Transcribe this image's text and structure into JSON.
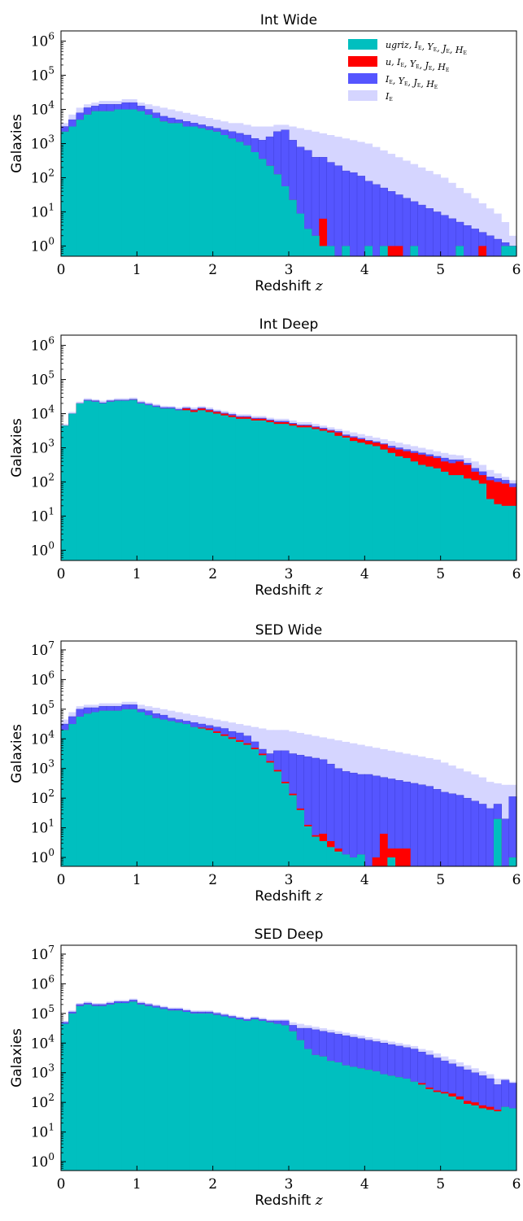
{
  "colors": {
    "ugriz": "#00bfbf",
    "u": "#ff0000",
    "IYJH": "#5555ff",
    "I": "#d5d5ff"
  },
  "chart_data": [
    {
      "type": "bar",
      "title": "Int Wide",
      "xlabel": "Redshift z",
      "ylabel": "Galaxies",
      "xlim": [
        0,
        6
      ],
      "ylog": [
        -0.3,
        6.3
      ],
      "yticks": [
        "10^0",
        "10^1",
        "10^2",
        "10^3",
        "10^4",
        "10^5",
        "10^6"
      ],
      "xticks": [
        "0",
        "1",
        "2",
        "3",
        "4",
        "5",
        "6"
      ],
      "legend": {
        "position": "top-right"
      },
      "series": [
        {
          "name": "ugriz, I_E, Y_E, J_E, H_E",
          "key": "ugriz"
        },
        {
          "name": "u, I_E, Y_E, J_E, H_E",
          "key": "u"
        },
        {
          "name": "I_E, Y_E, J_E, H_E",
          "key": "IYJH"
        },
        {
          "name": "I_E",
          "key": "I"
        }
      ],
      "x_bins": {
        "start": 0,
        "step": 0.1,
        "count": 60
      },
      "log10_counts": {
        "ugriz": [
          3.35,
          3.5,
          3.7,
          3.85,
          3.95,
          3.95,
          3.95,
          4.0,
          4.0,
          4.0,
          3.95,
          3.85,
          3.75,
          3.65,
          3.6,
          3.6,
          3.5,
          3.5,
          3.45,
          3.4,
          3.35,
          3.25,
          3.15,
          3.05,
          2.95,
          2.75,
          2.55,
          2.35,
          2.1,
          1.75,
          1.35,
          0.95,
          0.5,
          0.3,
          0.0,
          0.0,
          -1,
          0.0,
          -1,
          -1,
          0.0,
          -1,
          0.0,
          -1,
          -1,
          -1,
          0.0,
          -1,
          -1,
          -1,
          -1,
          -1,
          0.0,
          -1,
          -1,
          -1,
          -1,
          -1,
          0.0,
          0.0
        ],
        "u": [
          3.35,
          3.5,
          3.7,
          3.85,
          3.95,
          3.95,
          3.95,
          4.0,
          4.0,
          4.0,
          3.95,
          3.85,
          3.75,
          3.65,
          3.6,
          3.6,
          3.5,
          3.5,
          3.45,
          3.4,
          3.35,
          3.25,
          3.15,
          3.05,
          2.95,
          2.75,
          2.55,
          2.35,
          2.1,
          1.75,
          1.35,
          0.95,
          0.5,
          0.3,
          0.8,
          0.0,
          -1,
          0.0,
          -1,
          -1,
          0.0,
          -1,
          0.0,
          0.0,
          0.0,
          -1,
          0.0,
          -1,
          -1,
          -1,
          -1,
          -1,
          0.0,
          -1,
          -1,
          0.0,
          -1,
          -1,
          0.0,
          0.0
        ],
        "IYJH": [
          3.5,
          3.7,
          3.9,
          4.05,
          4.1,
          4.15,
          4.15,
          4.15,
          4.2,
          4.2,
          4.1,
          4.0,
          3.9,
          3.8,
          3.75,
          3.7,
          3.65,
          3.6,
          3.55,
          3.5,
          3.45,
          3.4,
          3.35,
          3.3,
          3.25,
          3.15,
          3.1,
          3.2,
          3.35,
          3.4,
          3.1,
          2.9,
          2.8,
          2.6,
          2.6,
          2.45,
          2.35,
          2.2,
          2.15,
          2.05,
          1.9,
          1.8,
          1.7,
          1.6,
          1.5,
          1.4,
          1.3,
          1.2,
          1.1,
          1.0,
          0.9,
          0.8,
          0.7,
          0.6,
          0.5,
          0.4,
          0.3,
          0.2,
          0.1,
          0.0
        ],
        "I": [
          3.6,
          3.85,
          4.05,
          4.15,
          4.2,
          4.25,
          4.25,
          4.25,
          4.3,
          4.3,
          4.2,
          4.15,
          4.1,
          4.05,
          4.0,
          3.95,
          3.9,
          3.85,
          3.8,
          3.75,
          3.7,
          3.65,
          3.6,
          3.6,
          3.55,
          3.5,
          3.5,
          3.5,
          3.55,
          3.55,
          3.5,
          3.45,
          3.4,
          3.35,
          3.3,
          3.25,
          3.2,
          3.15,
          3.1,
          3.05,
          3.0,
          2.9,
          2.8,
          2.7,
          2.6,
          2.5,
          2.4,
          2.3,
          2.2,
          2.1,
          2.0,
          1.85,
          1.7,
          1.55,
          1.4,
          1.25,
          1.1,
          0.95,
          0.7,
          0.3
        ]
      }
    },
    {
      "type": "bar",
      "title": "Int Deep",
      "xlabel": "Redshift z",
      "ylabel": "Galaxies",
      "xlim": [
        0,
        6
      ],
      "ylog": [
        -0.3,
        6.3
      ],
      "yticks": [
        "10^0",
        "10^1",
        "10^2",
        "10^3",
        "10^4",
        "10^5",
        "10^6"
      ],
      "xticks": [
        "0",
        "1",
        "2",
        "3",
        "4",
        "5",
        "6"
      ],
      "x_bins": {
        "start": 0,
        "step": 0.1,
        "count": 60
      },
      "log10_counts": {
        "ugriz": [
          3.65,
          4.0,
          4.3,
          4.38,
          4.35,
          4.3,
          4.35,
          4.38,
          4.38,
          4.4,
          4.3,
          4.25,
          4.2,
          4.15,
          4.15,
          4.1,
          4.1,
          4.05,
          4.1,
          4.05,
          4.0,
          3.95,
          3.9,
          3.85,
          3.85,
          3.8,
          3.8,
          3.75,
          3.7,
          3.7,
          3.65,
          3.6,
          3.6,
          3.55,
          3.5,
          3.45,
          3.35,
          3.3,
          3.2,
          3.15,
          3.1,
          3.05,
          2.95,
          2.85,
          2.75,
          2.7,
          2.6,
          2.5,
          2.45,
          2.4,
          2.3,
          2.2,
          2.2,
          2.1,
          2.05,
          1.95,
          1.5,
          1.35,
          1.3,
          1.3
        ],
        "u": [
          3.65,
          4.0,
          4.3,
          4.38,
          4.35,
          4.3,
          4.35,
          4.38,
          4.38,
          4.4,
          4.3,
          4.25,
          4.2,
          4.15,
          4.15,
          4.1,
          4.15,
          4.1,
          4.15,
          4.1,
          4.05,
          4.0,
          3.95,
          3.9,
          3.9,
          3.85,
          3.85,
          3.8,
          3.75,
          3.75,
          3.7,
          3.65,
          3.65,
          3.6,
          3.55,
          3.5,
          3.45,
          3.35,
          3.3,
          3.25,
          3.2,
          3.15,
          3.1,
          3.0,
          2.95,
          2.9,
          2.85,
          2.8,
          2.75,
          2.7,
          2.6,
          2.55,
          2.6,
          2.5,
          2.3,
          2.2,
          2.05,
          2.0,
          1.95,
          1.85
        ],
        "IYJH": [
          3.65,
          4.0,
          4.3,
          4.4,
          4.38,
          4.32,
          4.38,
          4.4,
          4.4,
          4.42,
          4.33,
          4.28,
          4.23,
          4.18,
          4.18,
          4.13,
          4.17,
          4.12,
          4.17,
          4.12,
          4.07,
          4.02,
          3.98,
          3.92,
          3.92,
          3.87,
          3.87,
          3.82,
          3.78,
          3.78,
          3.72,
          3.67,
          3.67,
          3.62,
          3.58,
          3.52,
          3.48,
          3.38,
          3.33,
          3.28,
          3.22,
          3.18,
          3.12,
          3.05,
          3.0,
          2.95,
          2.9,
          2.85,
          2.8,
          2.75,
          2.7,
          2.65,
          2.65,
          2.55,
          2.4,
          2.3,
          2.15,
          2.1,
          2.05,
          1.95
        ],
        "I": [
          3.7,
          4.05,
          4.35,
          4.45,
          4.42,
          4.38,
          4.42,
          4.45,
          4.45,
          4.47,
          4.38,
          4.33,
          4.28,
          4.23,
          4.22,
          4.18,
          4.22,
          4.18,
          4.22,
          4.18,
          4.12,
          4.08,
          4.03,
          3.98,
          3.98,
          3.93,
          3.93,
          3.88,
          3.85,
          3.85,
          3.8,
          3.75,
          3.75,
          3.7,
          3.65,
          3.6,
          3.55,
          3.5,
          3.45,
          3.4,
          3.35,
          3.3,
          3.25,
          3.2,
          3.15,
          3.1,
          3.05,
          3.0,
          2.95,
          2.9,
          2.85,
          2.8,
          2.78,
          2.7,
          2.6,
          2.5,
          2.35,
          2.25,
          2.15,
          2.05
        ]
      }
    },
    {
      "type": "bar",
      "title": "SED Wide",
      "xlabel": "Redshift z",
      "ylabel": "Galaxies",
      "xlim": [
        0,
        6
      ],
      "ylog": [
        -0.3,
        7.3
      ],
      "yticks": [
        "10^0",
        "10^1",
        "10^2",
        "10^3",
        "10^4",
        "10^5",
        "10^6",
        "10^7"
      ],
      "xticks": [
        "0",
        "1",
        "2",
        "3",
        "4",
        "5",
        "6"
      ],
      "x_bins": {
        "start": 0,
        "step": 0.1,
        "count": 60
      },
      "log10_counts": {
        "ugriz": [
          4.3,
          4.5,
          4.75,
          4.85,
          4.9,
          4.95,
          4.95,
          4.95,
          5.0,
          5.0,
          4.9,
          4.8,
          4.7,
          4.65,
          4.6,
          4.55,
          4.5,
          4.4,
          4.35,
          4.3,
          4.2,
          4.1,
          4.0,
          3.9,
          3.8,
          3.65,
          3.45,
          3.2,
          2.9,
          2.5,
          2.1,
          1.6,
          1.05,
          0.7,
          0.55,
          0.35,
          0.2,
          0.1,
          0.0,
          0.1,
          -1,
          -1,
          -1,
          0.0,
          -1,
          -1,
          -1,
          -1,
          -1,
          -1,
          -1,
          -1,
          -1,
          -1,
          -1,
          -1,
          -1,
          1.3,
          -1,
          0.0
        ],
        "u": [
          4.3,
          4.5,
          4.75,
          4.85,
          4.9,
          4.95,
          4.95,
          4.95,
          5.0,
          5.0,
          4.9,
          4.8,
          4.7,
          4.65,
          4.6,
          4.55,
          4.5,
          4.4,
          4.38,
          4.35,
          4.25,
          4.15,
          4.05,
          3.95,
          3.85,
          3.7,
          3.5,
          3.25,
          2.95,
          2.55,
          2.15,
          1.65,
          1.1,
          0.75,
          0.8,
          0.55,
          0.3,
          0.1,
          0.0,
          0.1,
          -1,
          0.0,
          0.8,
          0.3,
          0.3,
          0.3,
          -1,
          -1,
          -1,
          -1,
          -1,
          -1,
          -1,
          -1,
          -1,
          -1,
          -1,
          1.3,
          -1,
          0.0
        ],
        "IYJH": [
          4.5,
          4.75,
          5.0,
          5.05,
          5.05,
          5.1,
          5.1,
          5.1,
          5.15,
          5.15,
          5.0,
          4.95,
          4.85,
          4.8,
          4.7,
          4.65,
          4.6,
          4.55,
          4.5,
          4.45,
          4.4,
          4.35,
          4.25,
          4.2,
          4.1,
          3.9,
          3.65,
          3.5,
          3.6,
          3.6,
          3.5,
          3.45,
          3.4,
          3.35,
          3.3,
          3.15,
          3.0,
          2.9,
          2.85,
          2.8,
          2.8,
          2.75,
          2.7,
          2.65,
          2.6,
          2.55,
          2.5,
          2.45,
          2.4,
          2.3,
          2.2,
          2.15,
          2.1,
          2.0,
          1.9,
          1.8,
          1.65,
          1.8,
          1.3,
          2.05
        ],
        "I": [
          4.65,
          4.9,
          5.1,
          5.15,
          5.15,
          5.2,
          5.2,
          5.2,
          5.25,
          5.25,
          5.15,
          5.1,
          5.05,
          5.0,
          4.95,
          4.9,
          4.85,
          4.8,
          4.75,
          4.7,
          4.65,
          4.6,
          4.55,
          4.5,
          4.45,
          4.4,
          4.35,
          4.3,
          4.3,
          4.3,
          4.25,
          4.2,
          4.15,
          4.1,
          4.05,
          4.0,
          3.95,
          3.9,
          3.85,
          3.8,
          3.75,
          3.7,
          3.65,
          3.6,
          3.55,
          3.5,
          3.45,
          3.4,
          3.35,
          3.3,
          3.2,
          3.1,
          3.0,
          2.9,
          2.8,
          2.7,
          2.55,
          2.5,
          2.45,
          2.45
        ]
      }
    },
    {
      "type": "bar",
      "title": "SED Deep",
      "xlabel": "Redshift z",
      "ylabel": "Galaxies",
      "xlim": [
        0,
        6
      ],
      "ylog": [
        -0.3,
        7.3
      ],
      "yticks": [
        "10^0",
        "10^1",
        "10^2",
        "10^3",
        "10^4",
        "10^5",
        "10^6",
        "10^7"
      ],
      "xticks": [
        "0",
        "1",
        "2",
        "3",
        "4",
        "5",
        "6"
      ],
      "x_bins": {
        "start": 0,
        "step": 0.1,
        "count": 60
      },
      "log10_counts": {
        "ugriz": [
          4.65,
          5.0,
          5.25,
          5.3,
          5.25,
          5.25,
          5.3,
          5.35,
          5.35,
          5.4,
          5.3,
          5.25,
          5.2,
          5.15,
          5.1,
          5.1,
          5.05,
          5.0,
          5.0,
          5.0,
          4.95,
          4.9,
          4.85,
          4.8,
          4.75,
          4.8,
          4.75,
          4.7,
          4.65,
          4.6,
          4.4,
          4.1,
          3.8,
          3.6,
          3.55,
          3.4,
          3.35,
          3.25,
          3.2,
          3.15,
          3.1,
          3.05,
          2.95,
          2.9,
          2.85,
          2.8,
          2.7,
          2.6,
          2.45,
          2.35,
          2.3,
          2.2,
          2.1,
          1.95,
          1.9,
          1.8,
          1.75,
          1.7,
          1.85,
          1.8
        ],
        "u": [
          4.65,
          5.0,
          5.25,
          5.3,
          5.25,
          5.25,
          5.3,
          5.35,
          5.35,
          5.4,
          5.3,
          5.25,
          5.2,
          5.15,
          5.1,
          5.1,
          5.05,
          5.0,
          5.0,
          5.0,
          4.95,
          4.9,
          4.85,
          4.8,
          4.75,
          4.8,
          4.75,
          4.7,
          4.65,
          4.6,
          4.4,
          4.1,
          3.8,
          3.6,
          3.55,
          3.4,
          3.35,
          3.25,
          3.2,
          3.15,
          3.1,
          3.05,
          2.95,
          2.9,
          2.85,
          2.8,
          2.7,
          2.65,
          2.5,
          2.4,
          2.35,
          2.3,
          2.2,
          2.05,
          2.0,
          1.9,
          1.85,
          1.75,
          1.85,
          1.8
        ],
        "IYJH": [
          4.7,
          5.05,
          5.3,
          5.35,
          5.3,
          5.3,
          5.35,
          5.4,
          5.4,
          5.45,
          5.35,
          5.3,
          5.25,
          5.2,
          5.15,
          5.15,
          5.1,
          5.05,
          5.05,
          5.05,
          5.0,
          4.95,
          4.9,
          4.85,
          4.8,
          4.85,
          4.8,
          4.75,
          4.75,
          4.75,
          4.6,
          4.5,
          4.5,
          4.45,
          4.4,
          4.35,
          4.3,
          4.25,
          4.2,
          4.15,
          4.1,
          4.05,
          4.0,
          3.95,
          3.9,
          3.85,
          3.8,
          3.7,
          3.6,
          3.5,
          3.4,
          3.3,
          3.2,
          3.1,
          3.0,
          2.9,
          2.8,
          2.6,
          2.75,
          2.65
        ],
        "I": [
          4.75,
          5.1,
          5.35,
          5.4,
          5.35,
          5.35,
          5.4,
          5.45,
          5.45,
          5.5,
          5.4,
          5.35,
          5.3,
          5.25,
          5.2,
          5.2,
          5.15,
          5.1,
          5.1,
          5.1,
          5.05,
          5.0,
          4.95,
          4.9,
          4.85,
          4.9,
          4.85,
          4.8,
          4.8,
          4.8,
          4.7,
          4.65,
          4.6,
          4.55,
          4.5,
          4.45,
          4.4,
          4.35,
          4.3,
          4.25,
          4.2,
          4.15,
          4.1,
          4.05,
          4.0,
          3.95,
          3.9,
          3.8,
          3.75,
          3.65,
          3.55,
          3.45,
          3.35,
          3.25,
          3.15,
          3.05,
          2.95,
          2.8,
          2.8,
          2.7
        ]
      }
    }
  ]
}
